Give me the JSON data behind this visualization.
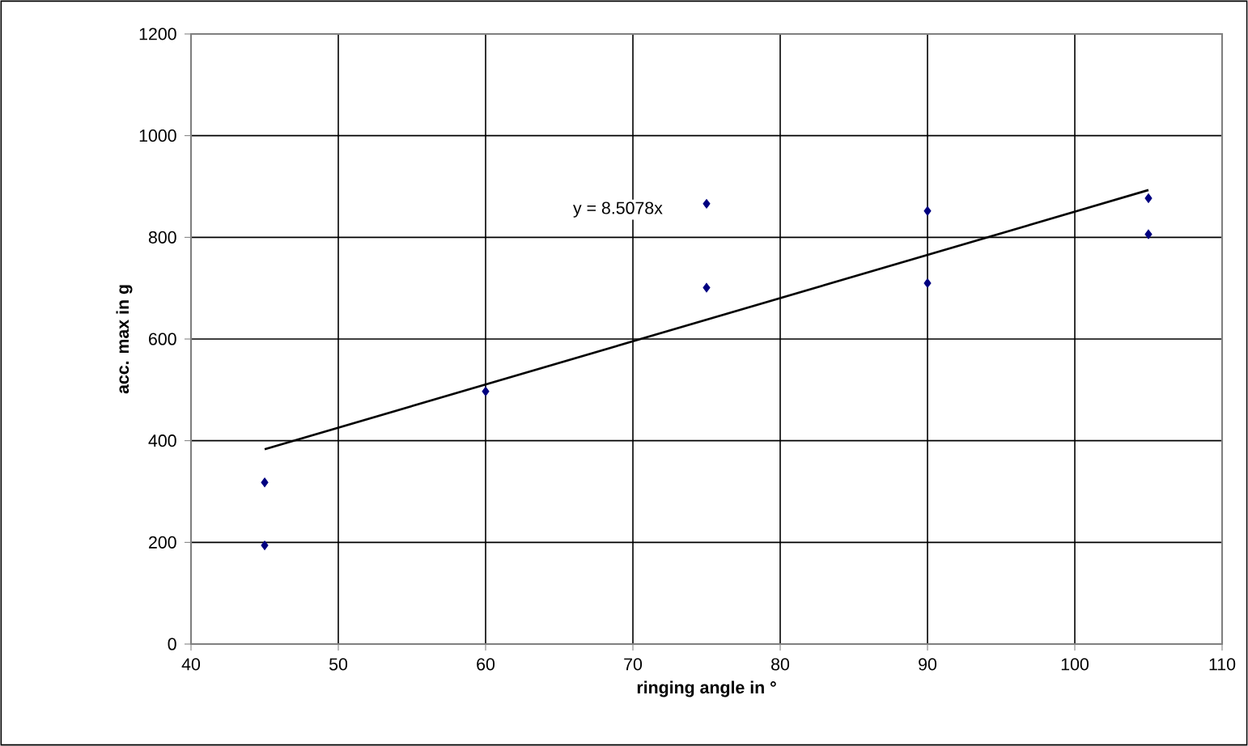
{
  "chart_data": {
    "type": "scatter",
    "xlabel": "ringing angle in °",
    "ylabel": "acc. max in g",
    "series": [
      {
        "color": "#000080",
        "marker": "diamond",
        "x": [
          45,
          45,
          60,
          75,
          75,
          90,
          90,
          105,
          105
        ],
        "values": [
          318,
          194,
          497,
          866,
          701,
          852,
          710,
          877,
          806
        ]
      },
      {
        "type": "line",
        "color": "#000000",
        "x": [
          45,
          105
        ],
        "values": [
          383,
          893
        ]
      }
    ],
    "xlim": [
      40,
      110
    ],
    "xticks": [
      40,
      50,
      60,
      70,
      80,
      90,
      100,
      110
    ],
    "ylim": [
      0,
      1200
    ],
    "yticks": [
      0,
      200,
      400,
      600,
      800,
      1000,
      1200
    ],
    "grid": true,
    "annotations": [
      "y = 8.5078x"
    ]
  }
}
